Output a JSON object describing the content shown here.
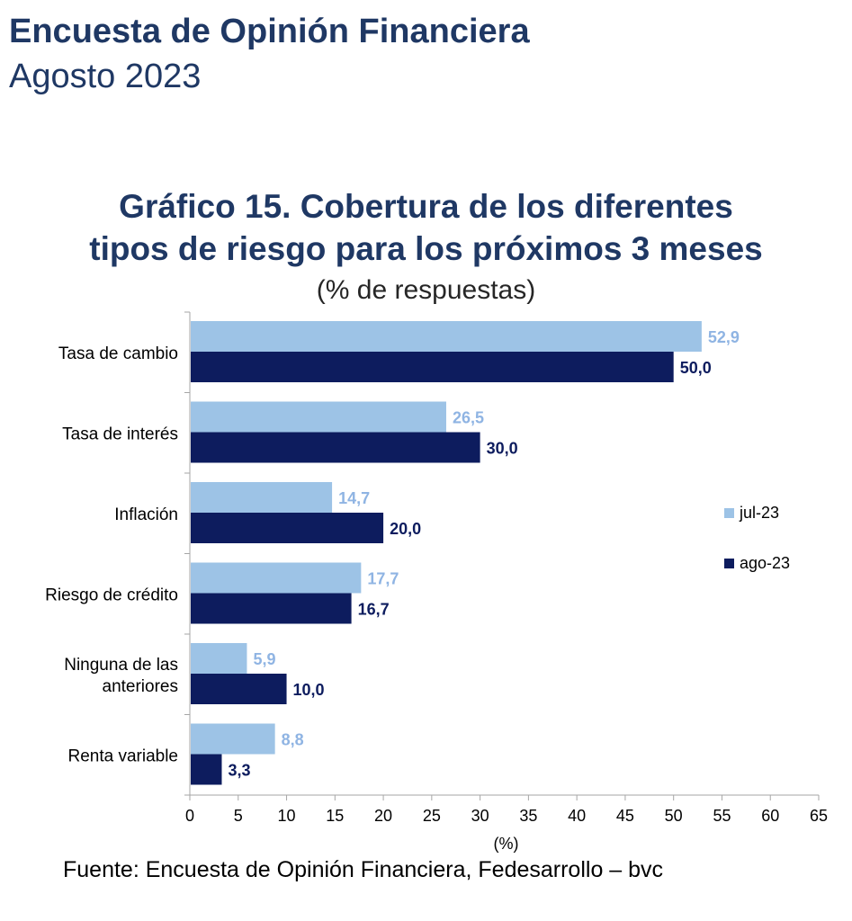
{
  "header": {
    "title": "Encuesta de Opinión Financiera",
    "subtitle": "Agosto 2023"
  },
  "chart_data": {
    "type": "bar",
    "orientation": "horizontal",
    "title_lines": [
      "Gráfico 15. Cobertura de los diferentes",
      "tipos de riesgo para los próximos 3 meses"
    ],
    "subtitle": "(% de respuestas)",
    "categories": [
      [
        "Tasa de cambio"
      ],
      [
        "Tasa de interés"
      ],
      [
        "Inflación"
      ],
      [
        "Riesgo de crédito"
      ],
      [
        "Ninguna de las",
        "anteriores"
      ],
      [
        "Renta variable"
      ]
    ],
    "series": [
      {
        "name": "jul-23",
        "color": "#9dc3e6",
        "label_color": "#8fb4e3",
        "values": [
          52.9,
          26.5,
          14.7,
          17.7,
          5.9,
          8.8
        ],
        "labels": [
          "52,9",
          "26,5",
          "14,7",
          "17,7",
          "5,9",
          "8,8"
        ]
      },
      {
        "name": "ago-23",
        "color": "#0d1c5e",
        "label_color": "#0d1c5e",
        "values": [
          50.0,
          30.0,
          20.0,
          16.7,
          10.0,
          3.3
        ],
        "labels": [
          "50,0",
          "30,0",
          "20,0",
          "16,7",
          "10,0",
          "3,3"
        ]
      }
    ],
    "xlim": [
      0,
      65
    ],
    "xticks": [
      "0",
      "5",
      "10",
      "15",
      "20",
      "25",
      "30",
      "35",
      "40",
      "45",
      "50",
      "55",
      "60",
      "65"
    ],
    "xlabel": "(%)",
    "legend_position": "right",
    "grid": false
  },
  "footer": {
    "source": "Fuente: Encuesta de Opinión Financiera, Fedesarrollo – bvc"
  }
}
